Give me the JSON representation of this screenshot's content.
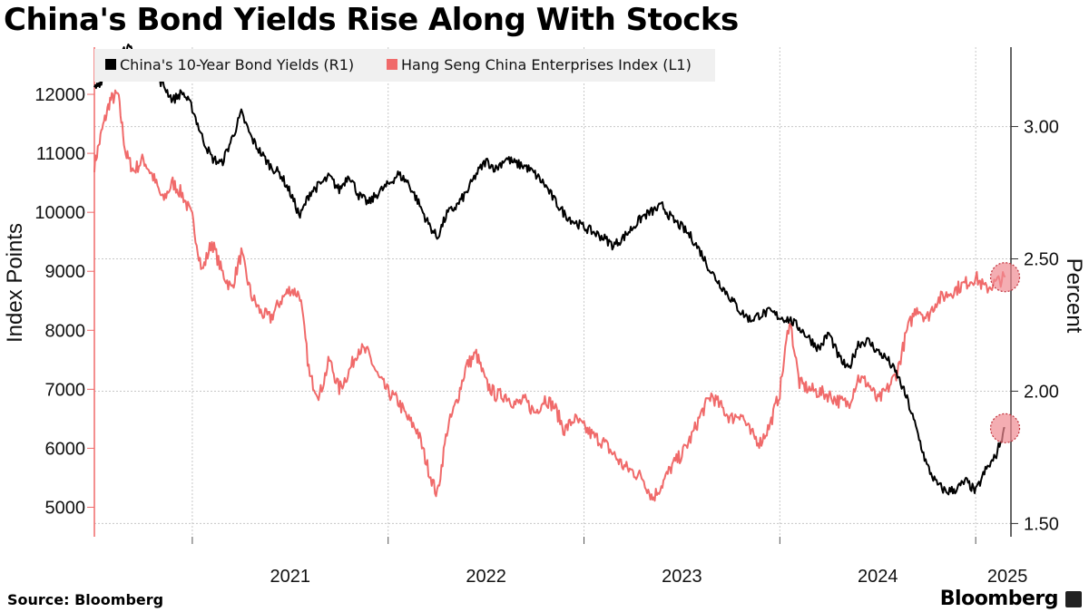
{
  "header": {
    "title": "China's Bond Yields Rise Along With Stocks"
  },
  "footer": {
    "source": "Source: Bloomberg",
    "brand": "Bloomberg"
  },
  "colors": {
    "bond": "#000000",
    "index": "#f06a6a",
    "marker": "#f08a92",
    "grid": "#c8c8c8"
  },
  "chart_data": {
    "type": "line",
    "title": "China's Bond Yields Rise Along With Stocks",
    "xlabel": "",
    "ylabel_left": "Index Points",
    "ylabel_right": "Percent",
    "xlim": [
      2020.5,
      2025.18
    ],
    "ylim_left": [
      4500,
      12800
    ],
    "ylim_right": [
      1.45,
      3.3
    ],
    "left_ticks": [
      5000,
      6000,
      7000,
      8000,
      9000,
      10000,
      11000,
      12000
    ],
    "right_ticks": [
      1.5,
      2.0,
      2.5,
      3.0
    ],
    "right_tick_labels": [
      "1.50",
      "2.00",
      "2.50",
      "3.00"
    ],
    "x_ticks": [
      2021,
      2022,
      2023,
      2024,
      2025
    ],
    "x_tick_labels": [
      "2021",
      "2022",
      "2023",
      "2024",
      "2025"
    ],
    "grid": true,
    "legend": {
      "placement": "top-left",
      "entries": [
        "China's 10-Year Bond Yields (R1)",
        "Hang Seng China Enterprises Index (L1)"
      ]
    },
    "series": [
      {
        "name": "China's 10-Year Bond Yields (R1)",
        "axis": "right",
        "x": [
          2020.5,
          2020.54,
          2020.58,
          2020.62,
          2020.66,
          2020.7,
          2020.75,
          2020.8,
          2020.85,
          2020.9,
          2020.95,
          2021.0,
          2021.05,
          2021.1,
          2021.15,
          2021.2,
          2021.25,
          2021.3,
          2021.35,
          2021.4,
          2021.45,
          2021.5,
          2021.55,
          2021.6,
          2021.65,
          2021.7,
          2021.75,
          2021.8,
          2021.85,
          2021.9,
          2021.95,
          2022.0,
          2022.05,
          2022.1,
          2022.15,
          2022.2,
          2022.25,
          2022.3,
          2022.35,
          2022.4,
          2022.45,
          2022.5,
          2022.55,
          2022.6,
          2022.65,
          2022.7,
          2022.75,
          2022.8,
          2022.85,
          2022.9,
          2022.95,
          2023.0,
          2023.05,
          2023.1,
          2023.15,
          2023.2,
          2023.25,
          2023.3,
          2023.35,
          2023.4,
          2023.45,
          2023.5,
          2023.55,
          2023.6,
          2023.65,
          2023.7,
          2023.75,
          2023.8,
          2023.85,
          2023.9,
          2023.95,
          2024.0,
          2024.05,
          2024.1,
          2024.15,
          2024.2,
          2024.25,
          2024.3,
          2024.35,
          2024.4,
          2024.45,
          2024.5,
          2024.55,
          2024.6,
          2024.65,
          2024.7,
          2024.75,
          2024.8,
          2024.85,
          2024.9,
          2024.95,
          2025.0,
          2025.05,
          2025.1,
          2025.15
        ],
        "values": [
          3.14,
          3.18,
          3.22,
          3.27,
          3.3,
          3.28,
          3.24,
          3.2,
          3.16,
          3.1,
          3.13,
          3.07,
          2.96,
          2.88,
          2.86,
          2.95,
          3.05,
          2.96,
          2.9,
          2.85,
          2.82,
          2.75,
          2.66,
          2.75,
          2.78,
          2.81,
          2.76,
          2.82,
          2.74,
          2.71,
          2.75,
          2.78,
          2.82,
          2.79,
          2.72,
          2.64,
          2.58,
          2.67,
          2.7,
          2.75,
          2.82,
          2.87,
          2.84,
          2.88,
          2.86,
          2.85,
          2.82,
          2.78,
          2.72,
          2.67,
          2.64,
          2.62,
          2.6,
          2.58,
          2.55,
          2.58,
          2.62,
          2.66,
          2.68,
          2.7,
          2.65,
          2.62,
          2.58,
          2.52,
          2.45,
          2.4,
          2.35,
          2.3,
          2.27,
          2.29,
          2.3,
          2.28,
          2.27,
          2.24,
          2.2,
          2.16,
          2.22,
          2.13,
          2.08,
          2.18,
          2.19,
          2.15,
          2.12,
          2.06,
          1.97,
          1.85,
          1.72,
          1.65,
          1.62,
          1.63,
          1.66,
          1.62,
          1.7,
          1.75,
          1.86
        ]
      },
      {
        "name": "Hang Seng China Enterprises Index (L1)",
        "axis": "left",
        "x": [
          2020.5,
          2020.54,
          2020.58,
          2020.62,
          2020.66,
          2020.7,
          2020.75,
          2020.8,
          2020.85,
          2020.9,
          2020.95,
          2021.0,
          2021.05,
          2021.1,
          2021.15,
          2021.2,
          2021.25,
          2021.3,
          2021.35,
          2021.4,
          2021.45,
          2021.5,
          2021.55,
          2021.6,
          2021.65,
          2021.7,
          2021.75,
          2021.8,
          2021.85,
          2021.9,
          2021.95,
          2022.0,
          2022.05,
          2022.1,
          2022.15,
          2022.2,
          2022.25,
          2022.3,
          2022.35,
          2022.4,
          2022.45,
          2022.5,
          2022.55,
          2022.6,
          2022.65,
          2022.7,
          2022.75,
          2022.8,
          2022.85,
          2022.9,
          2022.95,
          2023.0,
          2023.05,
          2023.1,
          2023.15,
          2023.2,
          2023.25,
          2023.3,
          2023.35,
          2023.4,
          2023.45,
          2023.5,
          2023.55,
          2023.6,
          2023.65,
          2023.7,
          2023.75,
          2023.8,
          2023.85,
          2023.9,
          2023.95,
          2024.0,
          2024.05,
          2024.1,
          2024.15,
          2024.2,
          2024.25,
          2024.3,
          2024.35,
          2024.4,
          2024.45,
          2024.5,
          2024.55,
          2024.6,
          2024.65,
          2024.7,
          2024.75,
          2024.8,
          2024.85,
          2024.9,
          2024.95,
          2025.0,
          2025.05,
          2025.1,
          2025.15
        ],
        "values": [
          10800,
          11400,
          11900,
          12000,
          11000,
          10700,
          10900,
          10600,
          10200,
          10500,
          10300,
          9900,
          9000,
          9500,
          9000,
          8700,
          9300,
          8600,
          8300,
          8200,
          8500,
          8700,
          8600,
          7200,
          6900,
          7500,
          7000,
          7300,
          7700,
          7600,
          7200,
          6950,
          6800,
          6500,
          6300,
          5700,
          5200,
          6300,
          6800,
          7400,
          7600,
          7100,
          6900,
          6900,
          6750,
          6800,
          6600,
          6850,
          6700,
          6300,
          6500,
          6350,
          6200,
          6100,
          5900,
          5700,
          5600,
          5500,
          5150,
          5400,
          5700,
          5900,
          6200,
          6600,
          6900,
          6700,
          6500,
          6600,
          6250,
          6100,
          6400,
          6950,
          8200,
          7100,
          7000,
          6950,
          6900,
          6800,
          6750,
          7200,
          7100,
          6800,
          7000,
          7300,
          8000,
          8400,
          8200,
          8500,
          8600,
          8700,
          8800,
          8900,
          8700,
          8800,
          8900
        ]
      }
    ]
  }
}
